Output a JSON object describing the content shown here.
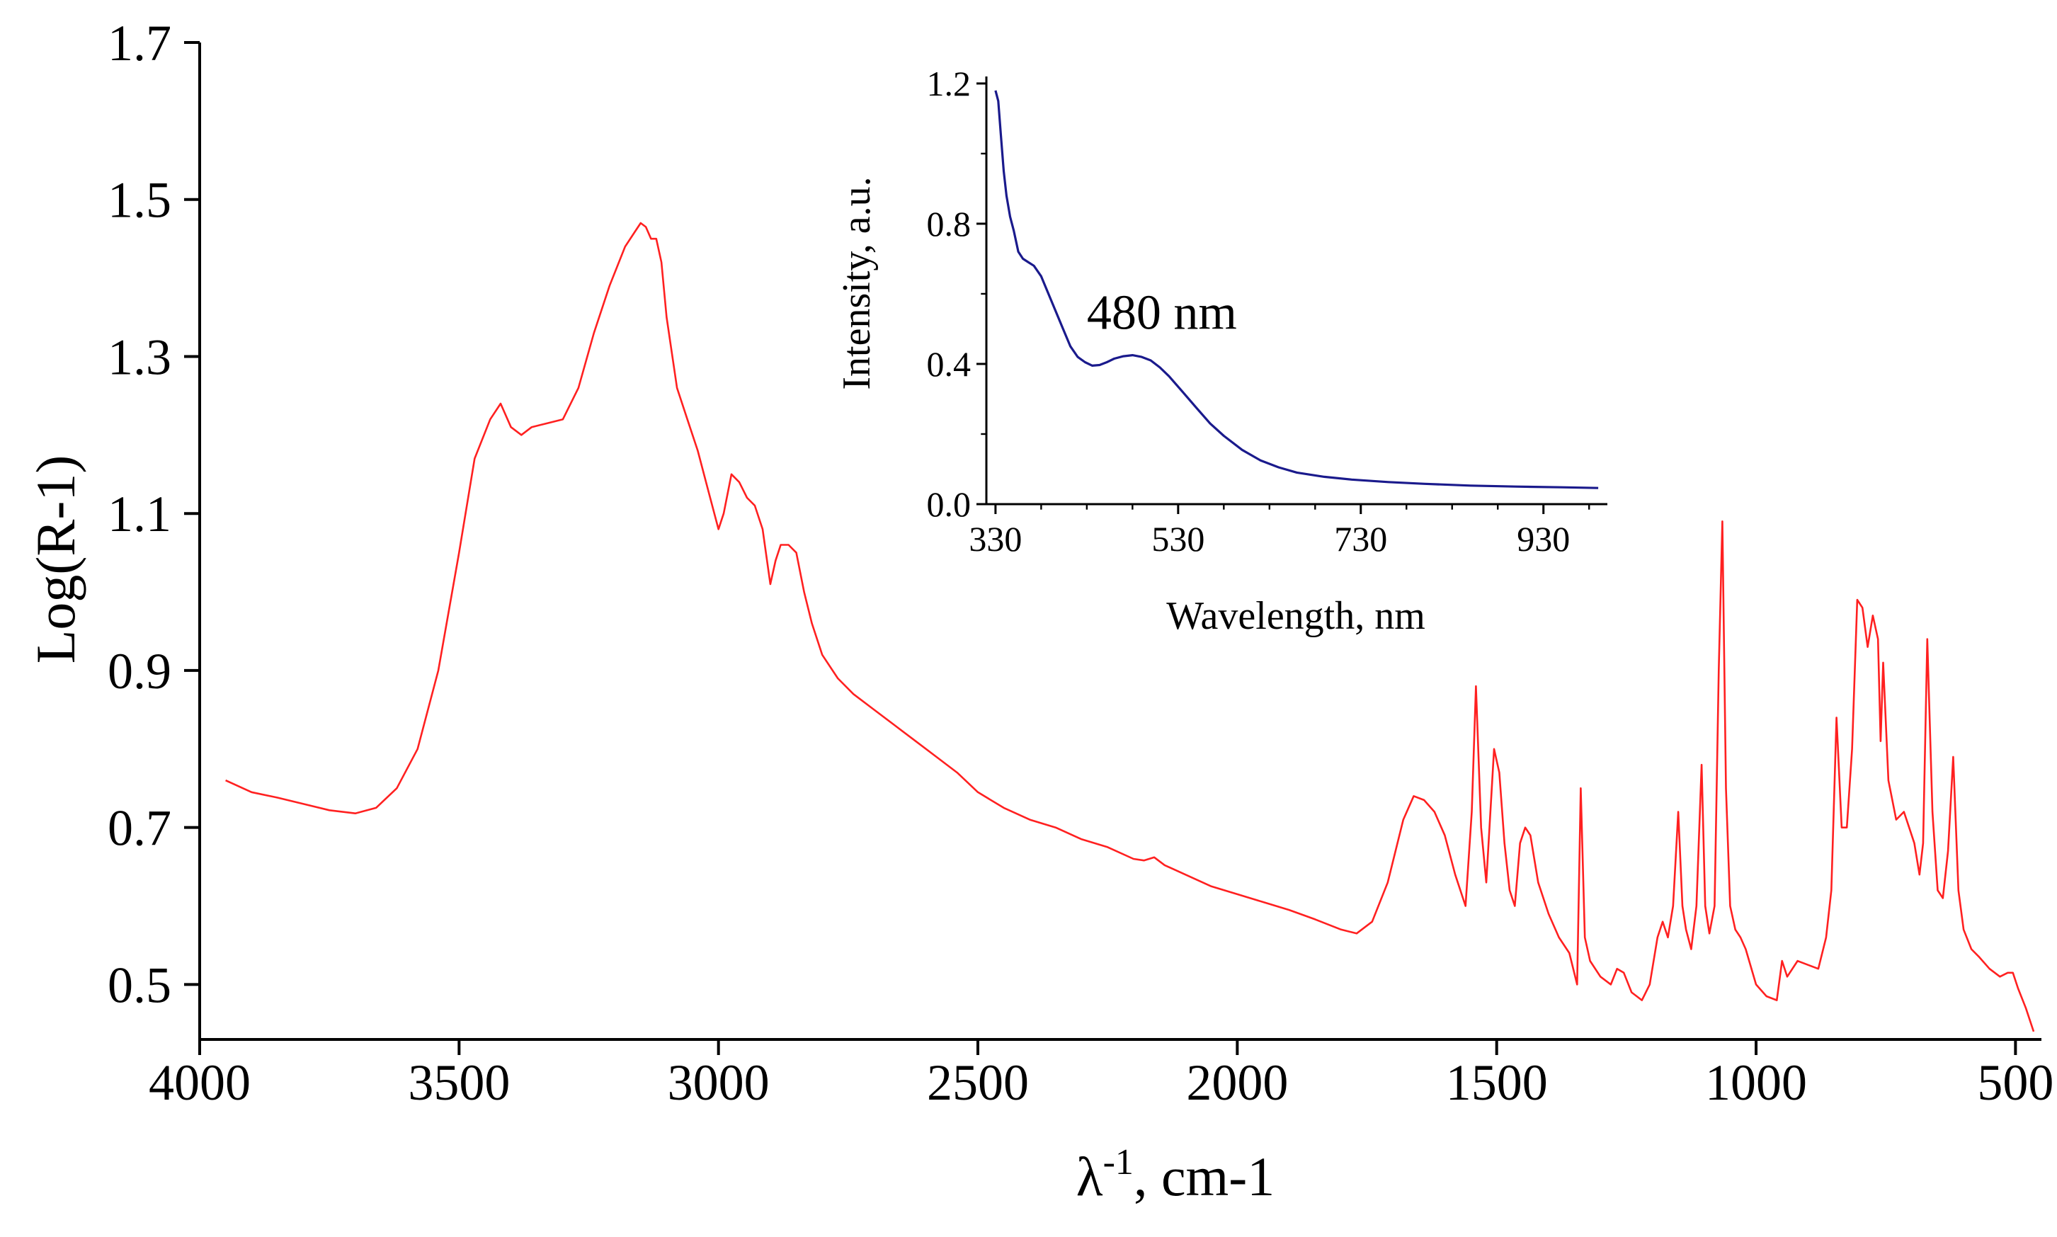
{
  "chart_data": [
    {
      "type": "line",
      "role": "main",
      "xlabel_base": "λ",
      "xlabel_sup": "-1",
      "xlabel_unit": ", cm-1",
      "ylabel": "Log(R-1)",
      "xlim": [
        4000,
        450
      ],
      "ylim": [
        0.43,
        1.7
      ],
      "x_reversed": true,
      "xticks": [
        4000,
        3500,
        3000,
        2500,
        2000,
        1500,
        1000,
        500
      ],
      "xtick_labels": [
        "4000",
        "3500",
        "3000",
        "2500",
        "2000",
        "1500",
        "1000",
        "500"
      ],
      "yticks": [
        1.7,
        1.5,
        1.3,
        1.1,
        0.9,
        0.7,
        0.5
      ],
      "ytick_labels": [
        "1.7",
        "1.5",
        "1.3",
        "1.1",
        "0.9",
        "0.7",
        "0.5"
      ],
      "grid": false,
      "color": "#ff2020",
      "series": [
        {
          "x": [
            3950,
            3900,
            3850,
            3800,
            3750,
            3700,
            3660,
            3620,
            3580,
            3540,
            3500,
            3470,
            3440,
            3420,
            3400,
            3380,
            3360,
            3330,
            3300,
            3270,
            3240,
            3210,
            3180,
            3160,
            3150,
            3140,
            3130,
            3120,
            3110,
            3100,
            3080,
            3060,
            3040,
            3020,
            3000,
            2990,
            2975,
            2960,
            2945,
            2930,
            2915,
            2900,
            2890,
            2880,
            2865,
            2850,
            2835,
            2820,
            2800,
            2770,
            2740,
            2700,
            2660,
            2620,
            2580,
            2540,
            2500,
            2450,
            2400,
            2350,
            2300,
            2250,
            2200,
            2180,
            2160,
            2140,
            2100,
            2050,
            2000,
            1950,
            1900,
            1850,
            1800,
            1770,
            1740,
            1710,
            1680,
            1660,
            1640,
            1620,
            1600,
            1580,
            1560,
            1548,
            1540,
            1530,
            1520,
            1505,
            1495,
            1485,
            1475,
            1465,
            1455,
            1445,
            1435,
            1420,
            1400,
            1380,
            1360,
            1345,
            1338,
            1330,
            1320,
            1300,
            1280,
            1268,
            1255,
            1240,
            1220,
            1205,
            1190,
            1180,
            1170,
            1160,
            1150,
            1142,
            1135,
            1125,
            1115,
            1105,
            1098,
            1090,
            1080,
            1072,
            1065,
            1058,
            1050,
            1040,
            1030,
            1020,
            1000,
            980,
            960,
            950,
            940,
            920,
            900,
            880,
            865,
            855,
            845,
            835,
            825,
            815,
            805,
            795,
            785,
            775,
            765,
            760,
            755,
            745,
            730,
            715,
            705,
            695,
            685,
            678,
            670,
            660,
            650,
            640,
            630,
            620,
            610,
            600,
            585,
            570,
            550,
            530,
            515,
            505,
            495,
            480,
            465
          ],
          "y": [
            0.76,
            0.745,
            0.738,
            0.73,
            0.722,
            0.718,
            0.725,
            0.75,
            0.8,
            0.9,
            1.05,
            1.17,
            1.22,
            1.24,
            1.21,
            1.2,
            1.21,
            1.215,
            1.22,
            1.26,
            1.33,
            1.39,
            1.44,
            1.46,
            1.47,
            1.465,
            1.45,
            1.45,
            1.42,
            1.35,
            1.26,
            1.22,
            1.18,
            1.13,
            1.08,
            1.1,
            1.15,
            1.14,
            1.12,
            1.11,
            1.08,
            1.01,
            1.04,
            1.06,
            1.06,
            1.05,
            1.0,
            0.96,
            0.92,
            0.89,
            0.87,
            0.85,
            0.83,
            0.81,
            0.79,
            0.77,
            0.745,
            0.725,
            0.71,
            0.7,
            0.685,
            0.675,
            0.66,
            0.658,
            0.662,
            0.652,
            0.64,
            0.625,
            0.615,
            0.605,
            0.595,
            0.583,
            0.57,
            0.565,
            0.58,
            0.63,
            0.71,
            0.74,
            0.735,
            0.72,
            0.69,
            0.64,
            0.6,
            0.72,
            0.88,
            0.7,
            0.63,
            0.8,
            0.77,
            0.68,
            0.62,
            0.6,
            0.68,
            0.7,
            0.69,
            0.63,
            0.59,
            0.56,
            0.54,
            0.5,
            0.75,
            0.56,
            0.53,
            0.51,
            0.5,
            0.52,
            0.515,
            0.49,
            0.48,
            0.5,
            0.56,
            0.58,
            0.56,
            0.6,
            0.72,
            0.6,
            0.57,
            0.545,
            0.6,
            0.78,
            0.6,
            0.565,
            0.6,
            0.9,
            1.09,
            0.75,
            0.6,
            0.57,
            0.56,
            0.545,
            0.5,
            0.485,
            0.48,
            0.53,
            0.51,
            0.53,
            0.525,
            0.52,
            0.56,
            0.62,
            0.84,
            0.7,
            0.7,
            0.8,
            0.99,
            0.98,
            0.93,
            0.97,
            0.94,
            0.81,
            0.91,
            0.76,
            0.71,
            0.72,
            0.7,
            0.68,
            0.64,
            0.68,
            0.94,
            0.72,
            0.62,
            0.61,
            0.67,
            0.79,
            0.62,
            0.57,
            0.545,
            0.535,
            0.52,
            0.51,
            0.515,
            0.515,
            0.495,
            0.47,
            0.44
          ]
        }
      ]
    },
    {
      "type": "line",
      "role": "inset",
      "xlabel": "Wavelength, nm",
      "ylabel": "Intensity, a.u.",
      "xlim": [
        320,
        1000
      ],
      "ylim": [
        0.0,
        1.22
      ],
      "xticks": [
        330,
        530,
        730,
        930
      ],
      "xtick_labels": [
        "330",
        "530",
        "730",
        "930"
      ],
      "yticks": [
        0.0,
        0.4,
        0.8,
        1.2
      ],
      "ytick_labels": [
        "0.0",
        "0.4",
        "0.8",
        "1.2"
      ],
      "minor_xticks": [
        380,
        430,
        480,
        580,
        630,
        680,
        780,
        830,
        880,
        980
      ],
      "minor_yticks": [
        0.2,
        0.6,
        1.0
      ],
      "grid": false,
      "color": "#1a1a8c",
      "annotation": {
        "text": "480 nm",
        "x": 430,
        "y": 0.5
      },
      "series": [
        {
          "x": [
            330,
            333,
            336,
            339,
            342,
            346,
            350,
            355,
            360,
            366,
            372,
            380,
            388,
            396,
            404,
            412,
            420,
            428,
            436,
            444,
            452,
            460,
            470,
            480,
            490,
            500,
            510,
            520,
            535,
            550,
            565,
            580,
            600,
            620,
            640,
            660,
            690,
            720,
            760,
            800,
            850,
            900,
            950,
            990
          ],
          "y": [
            1.18,
            1.15,
            1.05,
            0.95,
            0.88,
            0.82,
            0.78,
            0.72,
            0.7,
            0.69,
            0.68,
            0.65,
            0.6,
            0.55,
            0.5,
            0.45,
            0.42,
            0.405,
            0.395,
            0.397,
            0.405,
            0.415,
            0.422,
            0.425,
            0.42,
            0.41,
            0.39,
            0.365,
            0.32,
            0.275,
            0.23,
            0.195,
            0.155,
            0.125,
            0.105,
            0.09,
            0.078,
            0.07,
            0.063,
            0.058,
            0.053,
            0.05,
            0.048,
            0.046
          ]
        }
      ]
    }
  ]
}
